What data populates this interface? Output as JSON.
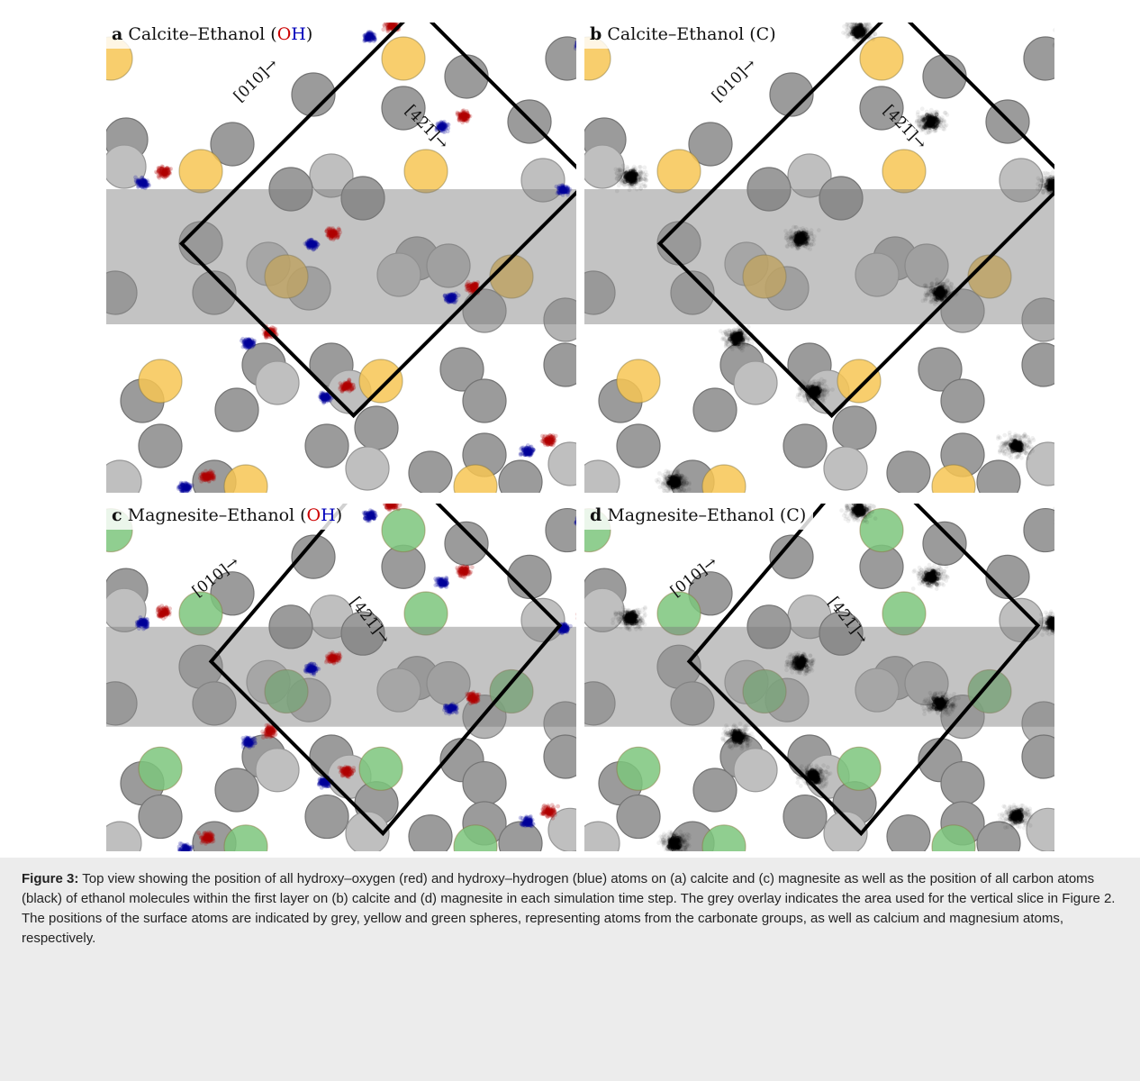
{
  "panels": [
    {
      "id": "a",
      "letter": "a",
      "title": "Calcite–Ethanol",
      "paren_open": " (",
      "paren_o": "O",
      "paren_h": "H",
      "paren_close": ")",
      "paren_c": "",
      "metal_color": "#f7c554",
      "mode": "oh"
    },
    {
      "id": "b",
      "letter": "b",
      "title": "Calcite–Ethanol",
      "paren_open": " (",
      "paren_o": "",
      "paren_h": "",
      "paren_close": ")",
      "paren_c": "C",
      "metal_color": "#f7c554",
      "mode": "c"
    },
    {
      "id": "c",
      "letter": "c",
      "title": "Magnesite–Ethanol",
      "paren_open": " (",
      "paren_o": "O",
      "paren_h": "H",
      "paren_close": ")",
      "paren_c": "",
      "metal_color": "#7cc67c",
      "mode": "oh"
    },
    {
      "id": "d",
      "letter": "d",
      "title": "Magnesite–Ethanol",
      "paren_open": " (",
      "paren_o": "",
      "paren_h": "",
      "paren_close": ")",
      "paren_c": "C",
      "metal_color": "#7cc67c",
      "mode": "c"
    }
  ],
  "directions": {
    "d010": "[010]→",
    "d421": "[42̅1̅]→"
  },
  "colors": {
    "oxygen": "#b00000",
    "hydrogen": "#000099",
    "carbon": "#000000",
    "carbonate": "#9e9e9e",
    "overlay": "#7a7a7a"
  },
  "caption": {
    "label": "Figure 3:",
    "text": " Top view showing the position of all hydroxy–oxygen (red) and hydroxy–hydrogen (blue) atoms on (a) calcite and (c) magnesite as well as the position of all carbon atoms (black) of ethanol molecules within the first layer on (b) calcite and (d) magnesite in each simulation time step. The grey overlay indicates the area used for the vertical slice in Figure 2. The positions of the surface atoms are indicated by grey, yellow and green spheres, representing atoms from the carbonate groups, as well as calcium and magnesium atoms, respectively."
  }
}
